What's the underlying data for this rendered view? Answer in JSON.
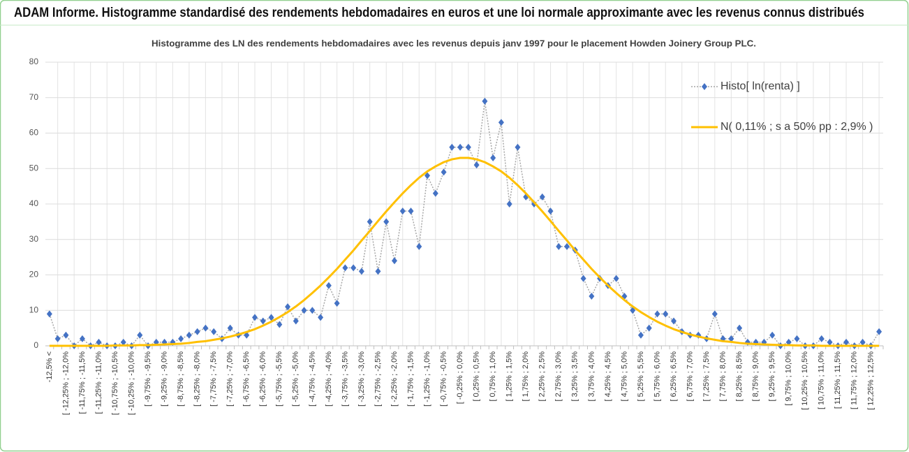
{
  "page_title": "ADAM Informe. Histogramme standardisé des rendements hebdomadaires en euros et une loi normale approximante avec les revenus connus distribués",
  "chart_data": {
    "type": "line",
    "title": "Histogramme des LN des rendements hebdomadaires avec les revenus depuis janv 1997 pour le placement Howden Joinery Group PLC.",
    "categories": [
      "-12,5% <",
      null,
      "[ -12,25% ; -12,0%",
      null,
      "[ -11,75% ; -11,5%",
      null,
      "[ -11,25% ; -11,0%",
      null,
      "[ -10,75% ; -10,5%",
      null,
      "[ -10,25% ; -10,0%",
      null,
      "[ -9,75% ; -9,5%",
      null,
      "[ -9,25% ; -9,0%",
      null,
      "[ -8,75% ; -8,5%",
      null,
      "[ -8,25% ; -8,0%",
      null,
      "[ -7,75% ; -7,5%",
      null,
      "[ -7,25% ; -7,0%",
      null,
      "[ -6,75% ; -6,5%",
      null,
      "[ -6,25% ; -6,0%",
      null,
      "[ -5,75% ; -5,5%",
      null,
      "[ -5,25% ; -5,0%",
      null,
      "[ -4,75% ; -4,5%",
      null,
      "[ -4,25% ; -4,0%",
      null,
      "[ -3,75% ; -3,5%",
      null,
      "[ -3,25% ; -3,0%",
      null,
      "[ -2,75% ; -2,5%",
      null,
      "[ -2,25% ; -2,0%",
      null,
      "[ -1,75% ; -1,5%",
      null,
      "[ -1,25% ; -1,0%",
      null,
      "[ -0,75% ; -0,5%",
      null,
      "[ -0,25% ; 0,0%",
      null,
      "[ 0,25% ; 0,5%",
      null,
      "[ 0,75% ; 1,0%",
      null,
      "[ 1,25% ; 1,5%",
      null,
      "[ 1,75% ; 2,0%",
      null,
      "[ 2,25% ; 2,5%",
      null,
      "[ 2,75% ; 3,0%",
      null,
      "[ 3,25% ; 3,5%",
      null,
      "[ 3,75% ; 4,0%",
      null,
      "[ 4,25% ; 4,5%",
      null,
      "[ 4,75% ; 5,0%",
      null,
      "[ 5,25% ; 5,5%",
      null,
      "[ 5,75% ; 6,0%",
      null,
      "[ 6,25% ; 6,5%",
      null,
      "[ 6,75% ; 7,0%",
      null,
      "[ 7,25% ; 7,5%",
      null,
      "[ 7,75% ; 8,0%",
      null,
      "[ 8,25% ; 8,5%",
      null,
      "[ 8,75% ; 9,0%",
      null,
      "[ 9,25% ; 9,5%",
      null,
      "[ 9,75% ; 10,0%",
      null,
      "[ 10,25% ; 10,5%",
      null,
      "[ 10,75% ; 11,0%",
      null,
      "[ 11,25% ; 11,5%",
      null,
      "[ 11,75% ; 12,0%",
      null,
      "[ 12,25% ; 12,5%",
      null
    ],
    "series": [
      {
        "name": "Histo[ ln(renta) ]",
        "color": "#4472c4",
        "values": [
          9,
          2,
          3,
          0,
          2,
          0,
          1,
          0,
          0,
          1,
          0,
          3,
          0,
          1,
          1,
          1,
          2,
          3,
          4,
          5,
          4,
          2,
          5,
          3,
          3,
          8,
          7,
          8,
          6,
          11,
          7,
          10,
          10,
          8,
          17,
          12,
          22,
          22,
          21,
          35,
          21,
          35,
          24,
          38,
          38,
          28,
          48,
          43,
          49,
          56,
          56,
          56,
          51,
          69,
          53,
          63,
          40,
          56,
          42,
          40,
          42,
          38,
          28,
          28,
          27,
          19,
          14,
          19,
          17,
          19,
          14,
          10,
          3,
          5,
          9,
          9,
          7,
          4,
          3,
          3,
          2,
          9,
          2,
          2,
          5,
          1,
          1,
          1,
          3,
          0,
          1,
          2,
          0,
          0,
          2,
          1,
          0,
          1,
          0,
          1,
          0,
          4
        ]
      },
      {
        "name": "N( 0,11% ; s a 50% pp : 2,9% )",
        "color": "#ffc000",
        "values": [
          0,
          0,
          0,
          0,
          0,
          0,
          0,
          0,
          0.1,
          0.1,
          0.1,
          0.2,
          0.2,
          0.3,
          0.4,
          0.5,
          0.6,
          0.8,
          1.1,
          1.3,
          1.7,
          2.1,
          2.6,
          3.2,
          3.9,
          4.7,
          5.7,
          6.8,
          8.1,
          9.5,
          11.1,
          12.9,
          14.9,
          17.0,
          19.3,
          21.7,
          24.3,
          26.9,
          29.7,
          32.4,
          35.2,
          37.9,
          40.5,
          43.0,
          45.3,
          47.4,
          49.2,
          50.6,
          51.8,
          52.6,
          53.0,
          53.0,
          52.6,
          51.8,
          50.6,
          49.2,
          47.4,
          45.3,
          43.0,
          40.5,
          37.9,
          35.2,
          32.4,
          29.7,
          26.9,
          24.3,
          21.7,
          19.3,
          17.0,
          14.9,
          12.9,
          11.1,
          9.5,
          8.1,
          6.8,
          5.7,
          4.7,
          3.9,
          3.2,
          2.6,
          2.1,
          1.7,
          1.3,
          1.1,
          0.8,
          0.6,
          0.5,
          0.4,
          0.3,
          0.2,
          0.2,
          0.1,
          0.1,
          0.1,
          0,
          0,
          0,
          0,
          0,
          0,
          0,
          0
        ]
      }
    ],
    "ylim": [
      0,
      80
    ],
    "yticks": [
      0,
      10,
      20,
      30,
      40,
      50,
      60,
      70,
      80
    ],
    "grid": true,
    "legend": "top-right"
  }
}
